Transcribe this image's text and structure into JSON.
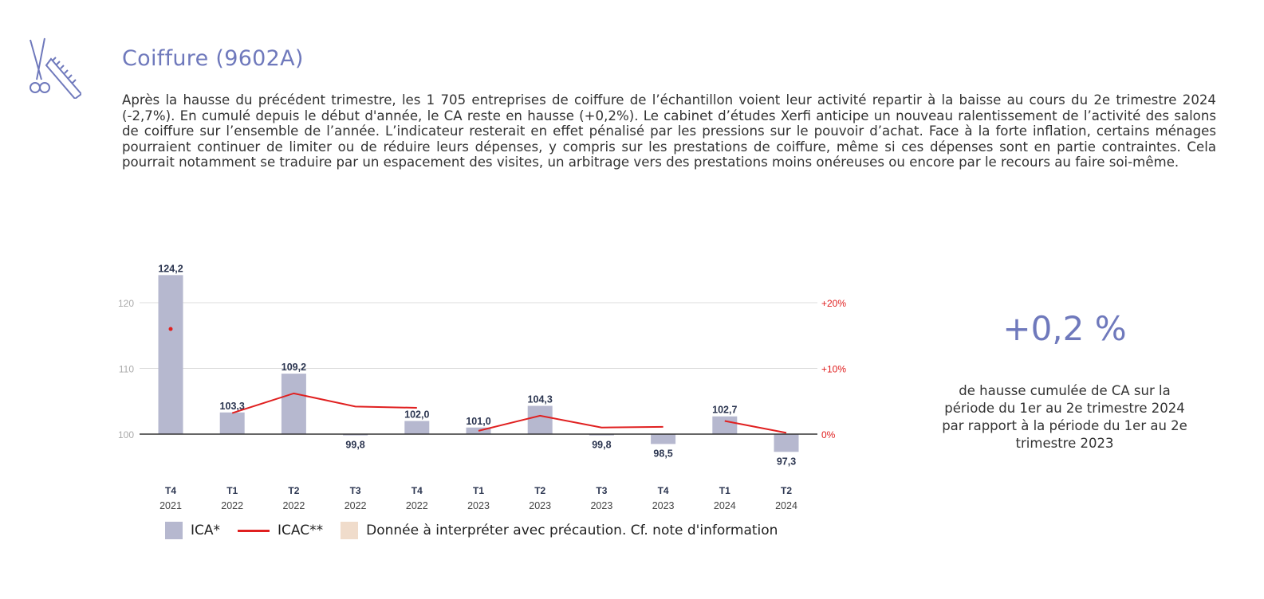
{
  "header": {
    "title": "Coiffure (9602A)",
    "icon": "scissors-comb-icon"
  },
  "paragraph": "Après la hausse du précédent trimestre, les 1 705 entreprises de coiffure de l’échantillon voient leur activité repartir à la baisse au cours du 2e trimestre 2024 (-2,7%). En cumulé depuis le début d'année, le CA reste en hausse (+0,2%). Le cabinet d’études Xerfi anticipe un nouveau ralentissement de l’activité des salons de coiffure sur l’ensemble de l’année. L’indicateur resterait en effet pénalisé par les pressions sur le pouvoir d’achat. Face à la forte inflation, certains ménages pourraient continuer de limiter ou de réduire leurs dépenses, y compris sur les prestations de coiffure, même si ces dépenses sont en partie contraintes. Cela pourrait notamment se traduire par un espacement des visites, un arbitrage vers des prestations moins onéreuses ou encore par le recours au faire soi-même.",
  "kpi": {
    "value": "+0,2 %",
    "description": "de hausse cumulée de CA sur la période du 1er au 2e trimestre 2024 par rapport à la période du 1er au 2e trimestre 2023"
  },
  "legend": {
    "ica": "ICA*",
    "icac": "ICAC**",
    "caution": "Donnée à interpréter avec précaution. Cf. note d'information"
  },
  "colors": {
    "bar": "#b6b8cf",
    "line": "#e02020",
    "caution": "#f0dccb",
    "accent": "#6f79bc"
  },
  "chart_data": {
    "type": "bar+line",
    "categories": [
      [
        "T4",
        "2021"
      ],
      [
        "T1",
        "2022"
      ],
      [
        "T2",
        "2022"
      ],
      [
        "T3",
        "2022"
      ],
      [
        "T4",
        "2022"
      ],
      [
        "T1",
        "2023"
      ],
      [
        "T2",
        "2023"
      ],
      [
        "T3",
        "2023"
      ],
      [
        "T4",
        "2023"
      ],
      [
        "T1",
        "2024"
      ],
      [
        "T2",
        "2024"
      ]
    ],
    "series": [
      {
        "name": "ICA*",
        "type": "bar",
        "values": [
          124.2,
          103.3,
          109.2,
          99.8,
          102.0,
          101.0,
          104.3,
          99.8,
          98.5,
          102.7,
          97.3
        ],
        "labels": [
          "124,2",
          "103,3",
          "109,2",
          "99,8",
          "102,0",
          "101,0",
          "104,3",
          "99,8",
          "98,5",
          "102,7",
          "97,3"
        ]
      },
      {
        "name": "ICAC**",
        "type": "line",
        "axis": "right",
        "values": [
          16,
          3.2,
          6.2,
          4.2,
          4.0,
          0.5,
          2.8,
          1.0,
          1.1,
          2.0,
          0.2
        ],
        "segments": [
          [
            0,
            0
          ],
          [
            1,
            4
          ],
          [
            5,
            8
          ],
          [
            9,
            10
          ]
        ]
      }
    ],
    "left_axis": {
      "ticks": [
        "100",
        "110",
        "120"
      ],
      "tick_values": [
        100,
        110,
        120
      ],
      "baseline": 100
    },
    "right_axis": {
      "ticks": [
        "0%",
        "+10%",
        "+20%"
      ],
      "tick_values": [
        0,
        10,
        20
      ]
    },
    "grid": true
  }
}
